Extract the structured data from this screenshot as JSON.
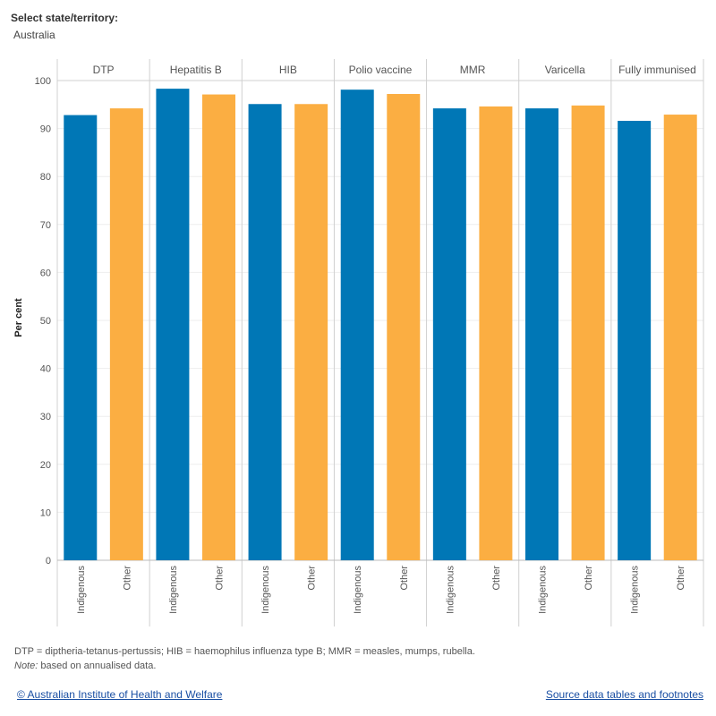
{
  "filter": {
    "label": "Select state/territory:",
    "value": "Australia"
  },
  "footer": {
    "abbreviations": "DTP = diptheria-tetanus-pertussis; HIB = haemophilus influenza type B; MMR = measles, mumps, rubella.",
    "note_label": "Note:",
    "note_text": " based on annualised data.",
    "copyright_link": "© Australian Institute of Health and Welfare",
    "source_link": "Source data tables and footnotes"
  },
  "colors": {
    "Indigenous": "#0077b6",
    "Other": "#fbae42",
    "grid": "#eeeeee",
    "divider": "#d0d0d0"
  },
  "chart_data": {
    "type": "bar",
    "ylabel": "Per cent",
    "ylim": [
      0,
      100
    ],
    "yticks": [
      0,
      10,
      20,
      30,
      40,
      50,
      60,
      70,
      80,
      90,
      100
    ],
    "panels": [
      "DTP",
      "Hepatitis B",
      "HIB",
      "Polio vaccine",
      "MMR",
      "Varicella",
      "Fully immunised"
    ],
    "groups": [
      "Indigenous",
      "Other"
    ],
    "series": [
      {
        "name": "Indigenous",
        "values": [
          92.8,
          98.3,
          95.1,
          98.1,
          94.2,
          94.2,
          91.6
        ]
      },
      {
        "name": "Other",
        "values": [
          94.2,
          97.1,
          95.1,
          97.2,
          94.6,
          94.8,
          92.9
        ]
      }
    ],
    "legend": "none",
    "grid": true
  }
}
